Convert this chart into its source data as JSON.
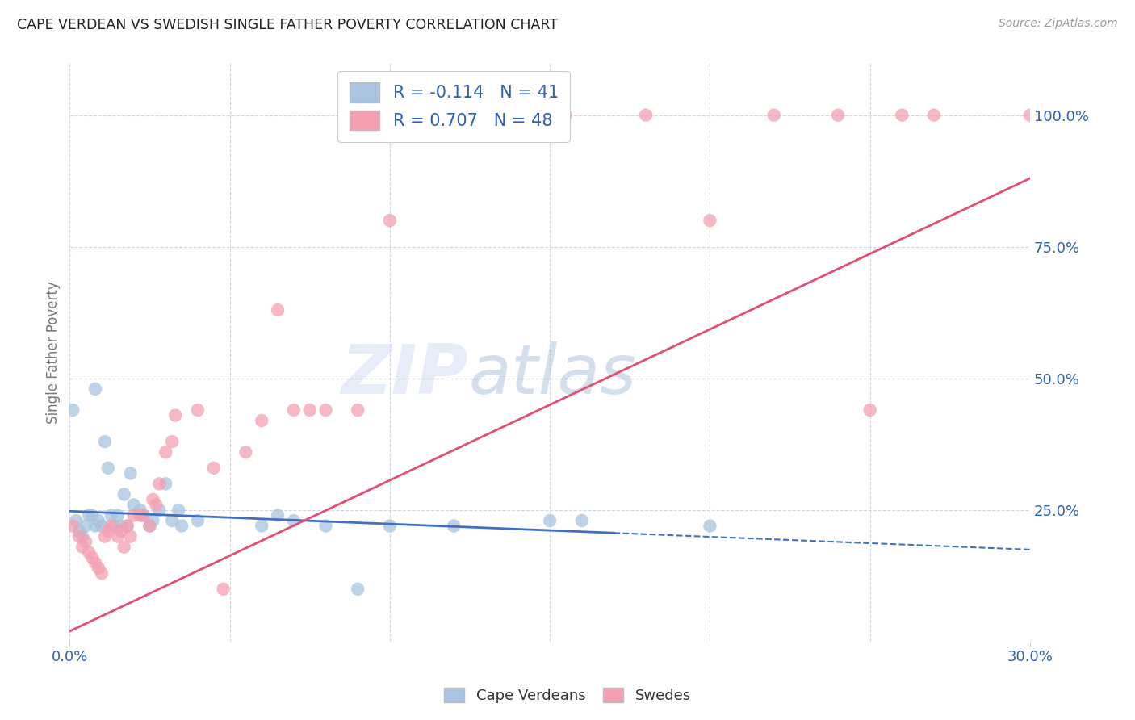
{
  "title": "CAPE VERDEAN VS SWEDISH SINGLE FATHER POVERTY CORRELATION CHART",
  "source": "Source: ZipAtlas.com",
  "ylabel": "Single Father Poverty",
  "ylabel_right_ticks": [
    "100.0%",
    "75.0%",
    "50.0%",
    "25.0%"
  ],
  "ylabel_right_vals": [
    1.0,
    0.75,
    0.5,
    0.25
  ],
  "xmin": 0.0,
  "xmax": 0.3,
  "ymin": 0.0,
  "ymax": 1.1,
  "watermark_part1": "ZIP",
  "watermark_part2": "atlas",
  "blue_R": "-0.114",
  "blue_N": "41",
  "pink_R": "0.707",
  "pink_N": "48",
  "blue_color": "#a8c4e0",
  "pink_color": "#f4a0b0",
  "blue_line_color": "#4070c0",
  "pink_line_color": "#e05070",
  "blue_scatter": [
    [
      0.001,
      0.44
    ],
    [
      0.002,
      0.23
    ],
    [
      0.003,
      0.21
    ],
    [
      0.004,
      0.2
    ],
    [
      0.005,
      0.22
    ],
    [
      0.006,
      0.24
    ],
    [
      0.007,
      0.24
    ],
    [
      0.008,
      0.22
    ],
    [
      0.009,
      0.23
    ],
    [
      0.01,
      0.22
    ],
    [
      0.011,
      0.38
    ],
    [
      0.012,
      0.33
    ],
    [
      0.013,
      0.24
    ],
    [
      0.014,
      0.22
    ],
    [
      0.015,
      0.24
    ],
    [
      0.016,
      0.22
    ],
    [
      0.017,
      0.28
    ],
    [
      0.018,
      0.22
    ],
    [
      0.019,
      0.32
    ],
    [
      0.02,
      0.26
    ],
    [
      0.022,
      0.25
    ],
    [
      0.023,
      0.24
    ],
    [
      0.025,
      0.22
    ],
    [
      0.026,
      0.23
    ],
    [
      0.028,
      0.25
    ],
    [
      0.03,
      0.3
    ],
    [
      0.032,
      0.23
    ],
    [
      0.034,
      0.25
    ],
    [
      0.035,
      0.22
    ],
    [
      0.04,
      0.23
    ],
    [
      0.008,
      0.48
    ],
    [
      0.06,
      0.22
    ],
    [
      0.065,
      0.24
    ],
    [
      0.07,
      0.23
    ],
    [
      0.08,
      0.22
    ],
    [
      0.09,
      0.1
    ],
    [
      0.1,
      0.22
    ],
    [
      0.12,
      0.22
    ],
    [
      0.15,
      0.23
    ],
    [
      0.16,
      0.23
    ],
    [
      0.2,
      0.22
    ]
  ],
  "pink_scatter": [
    [
      0.001,
      0.22
    ],
    [
      0.003,
      0.2
    ],
    [
      0.004,
      0.18
    ],
    [
      0.005,
      0.19
    ],
    [
      0.006,
      0.17
    ],
    [
      0.007,
      0.16
    ],
    [
      0.008,
      0.15
    ],
    [
      0.009,
      0.14
    ],
    [
      0.01,
      0.13
    ],
    [
      0.011,
      0.2
    ],
    [
      0.012,
      0.21
    ],
    [
      0.013,
      0.22
    ],
    [
      0.015,
      0.2
    ],
    [
      0.016,
      0.21
    ],
    [
      0.017,
      0.18
    ],
    [
      0.018,
      0.22
    ],
    [
      0.019,
      0.2
    ],
    [
      0.02,
      0.24
    ],
    [
      0.022,
      0.24
    ],
    [
      0.023,
      0.24
    ],
    [
      0.025,
      0.22
    ],
    [
      0.026,
      0.27
    ],
    [
      0.027,
      0.26
    ],
    [
      0.028,
      0.3
    ],
    [
      0.03,
      0.36
    ],
    [
      0.032,
      0.38
    ],
    [
      0.033,
      0.43
    ],
    [
      0.04,
      0.44
    ],
    [
      0.045,
      0.33
    ],
    [
      0.048,
      0.1
    ],
    [
      0.055,
      0.36
    ],
    [
      0.06,
      0.42
    ],
    [
      0.065,
      0.63
    ],
    [
      0.07,
      0.44
    ],
    [
      0.075,
      0.44
    ],
    [
      0.08,
      0.44
    ],
    [
      0.09,
      0.44
    ],
    [
      0.1,
      0.8
    ],
    [
      0.15,
      1.0
    ],
    [
      0.155,
      1.0
    ],
    [
      0.18,
      1.0
    ],
    [
      0.2,
      0.8
    ],
    [
      0.22,
      1.0
    ],
    [
      0.24,
      1.0
    ],
    [
      0.25,
      0.44
    ],
    [
      0.26,
      1.0
    ],
    [
      0.27,
      1.0
    ],
    [
      0.3,
      1.0
    ]
  ],
  "blue_trend_x": [
    0.0,
    0.3
  ],
  "blue_trend_y": [
    0.248,
    0.175
  ],
  "pink_trend_x": [
    0.0,
    0.3
  ],
  "pink_trend_y": [
    0.02,
    0.88
  ],
  "grid_color": "#d0d8e8",
  "bg_color": "#ffffff",
  "title_color": "#222222",
  "axis_label_color": "#3060b0"
}
